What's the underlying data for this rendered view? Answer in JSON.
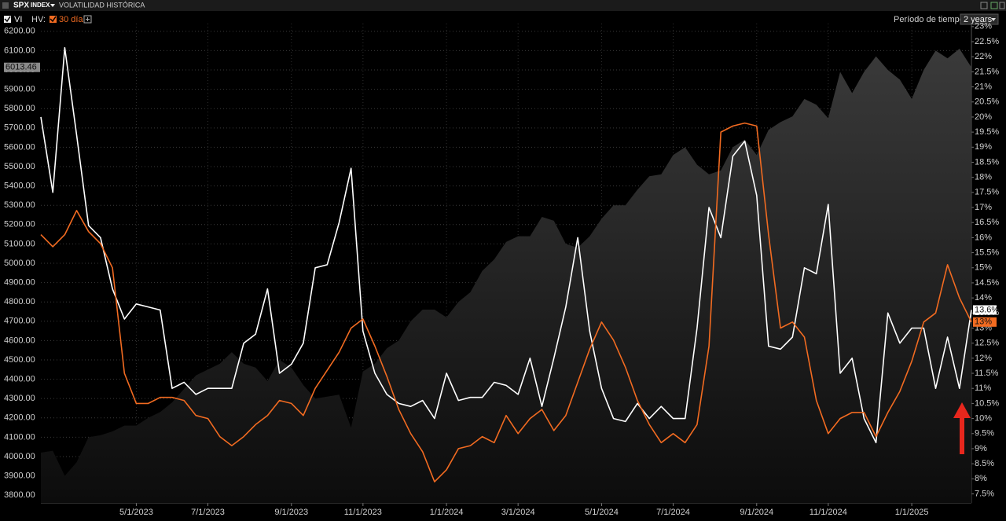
{
  "header": {
    "ticker": "SPX",
    "suffix": "INDEX",
    "title": "VOLATILIDAD HISTÓRICA",
    "period_label": "Período de tiempo:",
    "period": "2 years"
  },
  "chart_data": {
    "type": "line",
    "legend_prefix": "HV:",
    "grid": true,
    "categories": [
      null,
      null,
      null,
      null,
      null,
      null,
      null,
      null,
      "5/1/2023",
      null,
      null,
      null,
      null,
      null,
      "7/1/2023",
      null,
      null,
      null,
      null,
      null,
      null,
      "9/1/2023",
      null,
      null,
      null,
      null,
      null,
      "11/1/2023",
      null,
      null,
      null,
      null,
      null,
      null,
      "1/1/2024",
      null,
      null,
      null,
      null,
      null,
      "3/1/2024",
      null,
      null,
      null,
      null,
      null,
      null,
      "5/1/2024",
      null,
      null,
      null,
      null,
      null,
      "7/1/2024",
      null,
      null,
      null,
      null,
      null,
      null,
      "9/1/2024",
      null,
      null,
      null,
      null,
      null,
      "11/1/2024",
      null,
      null,
      null,
      null,
      null,
      null,
      "1/1/2025",
      null,
      null,
      null,
      null,
      null
    ],
    "ylim": [
      3760,
      6240
    ],
    "yticks": [
      {
        "value": 3800,
        "label": "3800.00"
      },
      {
        "value": 3900,
        "label": "3900.00"
      },
      {
        "value": 4000,
        "label": "4000.00"
      },
      {
        "value": 4100,
        "label": "4100.00"
      },
      {
        "value": 4200,
        "label": "4200.00"
      },
      {
        "value": 4300,
        "label": "4300.00"
      },
      {
        "value": 4400,
        "label": "4400.00"
      },
      {
        "value": 4500,
        "label": "4500.00"
      },
      {
        "value": 4600,
        "label": "4600.00"
      },
      {
        "value": 4700,
        "label": "4700.00"
      },
      {
        "value": 4800,
        "label": "4800.00"
      },
      {
        "value": 4900,
        "label": "4900.00"
      },
      {
        "value": 5000,
        "label": "5000.00"
      },
      {
        "value": 5100,
        "label": "5100.00"
      },
      {
        "value": 5200,
        "label": "5200.00"
      },
      {
        "value": 5300,
        "label": "5300.00"
      },
      {
        "value": 5400,
        "label": "5400.00"
      },
      {
        "value": 5500,
        "label": "5500.00"
      },
      {
        "value": 5600,
        "label": "5600.00"
      },
      {
        "value": 5700,
        "label": "5700.00"
      },
      {
        "value": 5800,
        "label": "5800.00"
      },
      {
        "value": 5900,
        "label": "5900.00"
      },
      {
        "value": 6000,
        "label": "6000.00"
      },
      {
        "value": 6100,
        "label": "6100.00"
      },
      {
        "value": 6200,
        "label": "6200.00"
      }
    ],
    "y2lim": [
      7.2,
      23.1
    ],
    "y2ticks": [
      {
        "value": 7.5,
        "label": "7.5%"
      },
      {
        "value": 8,
        "label": "8%"
      },
      {
        "value": 8.5,
        "label": "8.5%"
      },
      {
        "value": 9,
        "label": "9%"
      },
      {
        "value": 9.5,
        "label": "9.5%"
      },
      {
        "value": 10,
        "label": "10%"
      },
      {
        "value": 10.5,
        "label": "10.5%"
      },
      {
        "value": 11,
        "label": "11%"
      },
      {
        "value": 11.5,
        "label": "11.5%"
      },
      {
        "value": 12,
        "label": "12%"
      },
      {
        "value": 12.5,
        "label": "12.5%"
      },
      {
        "value": 13,
        "label": "13%"
      },
      {
        "value": 13.5,
        "label": "13.5%"
      },
      {
        "value": 14,
        "label": "14%"
      },
      {
        "value": 14.5,
        "label": "14.5%"
      },
      {
        "value": 15,
        "label": "15%"
      },
      {
        "value": 15.5,
        "label": "15.5%"
      },
      {
        "value": 16,
        "label": "16%"
      },
      {
        "value": 16.5,
        "label": "16.5%"
      },
      {
        "value": 17,
        "label": "17%"
      },
      {
        "value": 17.5,
        "label": "17.5%"
      },
      {
        "value": 18,
        "label": "18%"
      },
      {
        "value": 18.5,
        "label": "18.5%"
      },
      {
        "value": 19,
        "label": "19%"
      },
      {
        "value": 19.5,
        "label": "19.5%"
      },
      {
        "value": 20,
        "label": "20%"
      },
      {
        "value": 20.5,
        "label": "20.5%"
      },
      {
        "value": 21,
        "label": "21%"
      },
      {
        "value": 21.5,
        "label": "21.5%"
      },
      {
        "value": 22,
        "label": "22%"
      },
      {
        "value": 22.5,
        "label": "22.5%"
      },
      {
        "value": 23,
        "label": "23%"
      }
    ],
    "series": [
      {
        "style": "area",
        "color": "#2e2e2e",
        "axis": "y",
        "tag": "left",
        "values": [
          4020,
          4030,
          3900,
          3970,
          4100,
          4110,
          4130,
          4160,
          4160,
          4200,
          4230,
          4280,
          4350,
          4420,
          4450,
          4480,
          4540,
          4480,
          4460,
          4390,
          4500,
          4460,
          4370,
          4300,
          4310,
          4320,
          4150,
          4440,
          4480,
          4560,
          4600,
          4700,
          4760,
          4760,
          4720,
          4800,
          4850,
          4960,
          5020,
          5110,
          5140,
          5140,
          5240,
          5220,
          5100,
          5080,
          5140,
          5230,
          5300,
          5300,
          5380,
          5450,
          5460,
          5560,
          5600,
          5510,
          5460,
          5480,
          5600,
          5640,
          5560,
          5690,
          5730,
          5760,
          5850,
          5820,
          5750,
          5990,
          5880,
          5990,
          6070,
          6000,
          5950,
          5850,
          6000,
          6100,
          6060,
          6110,
          6013.46
        ]
      },
      {
        "name": "VI",
        "color": "#ffffff",
        "axis": "y2",
        "tag": "right",
        "values": [
          20.0,
          17.5,
          22.3,
          19.4,
          16.4,
          16.0,
          14.3,
          13.3,
          13.8,
          13.7,
          13.6,
          11.0,
          11.2,
          10.8,
          11.0,
          11.0,
          11.0,
          12.5,
          12.8,
          14.3,
          11.5,
          11.8,
          12.5,
          15.0,
          15.1,
          16.5,
          18.3,
          12.9,
          11.5,
          10.8,
          10.5,
          10.4,
          10.6,
          10.0,
          11.5,
          10.6,
          10.7,
          10.7,
          11.2,
          11.1,
          10.8,
          12.0,
          10.4,
          12.0,
          13.7,
          16.0,
          12.9,
          11.0,
          10.0,
          9.9,
          10.5,
          10.0,
          10.4,
          10.0,
          10.0,
          13.0,
          17.0,
          16.0,
          18.7,
          19.2,
          17.4,
          12.4,
          12.3,
          12.7,
          15.0,
          14.8,
          17.1,
          11.5,
          12.0,
          10.0,
          9.2,
          13.5,
          12.5,
          13.0,
          13.0,
          11.0,
          12.7,
          11.0,
          13.6
        ],
        "value_labels": [
          null,
          null,
          null,
          null,
          null,
          null,
          null,
          null,
          null,
          null,
          null,
          null,
          null,
          null,
          null,
          null,
          null,
          null,
          null,
          null,
          null,
          null,
          null,
          null,
          null,
          null,
          null,
          null,
          null,
          null,
          null,
          null,
          null,
          null,
          null,
          null,
          null,
          null,
          null,
          null,
          null,
          null,
          null,
          null,
          null,
          null,
          null,
          null,
          null,
          null,
          null,
          null,
          null,
          null,
          null,
          null,
          null,
          null,
          null,
          null,
          null,
          null,
          null,
          null,
          null,
          null,
          null,
          null,
          null,
          null,
          null,
          null,
          null,
          null,
          null,
          null,
          null,
          null,
          "13.6%"
        ]
      },
      {
        "name": "30 día",
        "color": "#f26b21",
        "axis": "y2",
        "tag": "right",
        "values": [
          16.1,
          15.7,
          16.1,
          16.9,
          16.2,
          15.8,
          15.0,
          11.5,
          10.5,
          10.5,
          10.7,
          10.7,
          10.6,
          10.1,
          10.0,
          9.4,
          9.1,
          9.4,
          9.8,
          10.1,
          10.6,
          10.5,
          10.1,
          11.0,
          11.6,
          12.2,
          13.0,
          13.3,
          12.4,
          11.4,
          10.3,
          9.5,
          8.9,
          7.9,
          8.3,
          9.0,
          9.1,
          9.4,
          9.2,
          10.1,
          9.5,
          10.0,
          10.3,
          9.6,
          10.1,
          11.2,
          12.3,
          13.2,
          12.6,
          11.7,
          10.6,
          9.8,
          9.2,
          9.5,
          9.2,
          9.8,
          12.4,
          19.5,
          19.7,
          19.8,
          19.7,
          16.1,
          13.0,
          13.2,
          12.7,
          10.6,
          9.5,
          10.0,
          10.2,
          10.2,
          9.4,
          10.2,
          10.9,
          11.9,
          13.2,
          13.5,
          15.1,
          14.0,
          13.2
        ],
        "value_labels": [
          null,
          null,
          null,
          null,
          null,
          null,
          null,
          null,
          null,
          null,
          null,
          null,
          null,
          null,
          null,
          null,
          null,
          null,
          null,
          null,
          null,
          null,
          null,
          null,
          null,
          null,
          null,
          null,
          null,
          null,
          null,
          null,
          null,
          null,
          null,
          null,
          null,
          null,
          null,
          null,
          null,
          null,
          null,
          null,
          null,
          null,
          null,
          null,
          null,
          null,
          null,
          null,
          null,
          null,
          null,
          null,
          null,
          null,
          null,
          null,
          null,
          null,
          null,
          null,
          null,
          null,
          null,
          null,
          null,
          null,
          null,
          null,
          null,
          null,
          null,
          null,
          null,
          null,
          "13%"
        ]
      }
    ]
  }
}
